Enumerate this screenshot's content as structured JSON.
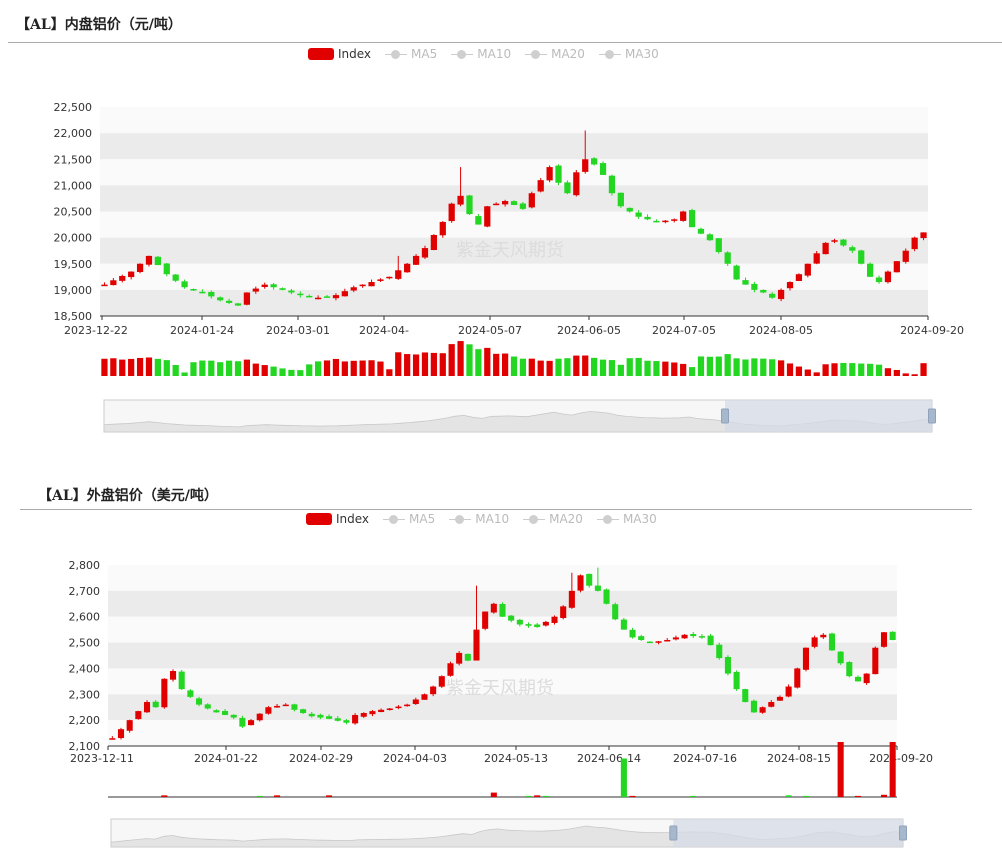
{
  "colors": {
    "up": "#e00000",
    "down": "#22d622",
    "band": "#ebebeb",
    "axis": "#333333",
    "watermark": "#dcdcdc",
    "zoom_fill": "#d6dbe6"
  },
  "charts": [
    {
      "title": "【AL】内盘铝价（元/吨）",
      "watermark": "紫金天风期货",
      "legend": {
        "active": "Index",
        "inactive": [
          "MA5",
          "MA10",
          "MA20",
          "MA30"
        ]
      },
      "ytick_labels": [
        "22,500",
        "22,000",
        "21,500",
        "21,000",
        "20,500",
        "20,000",
        "19,500",
        "19,000",
        "18,500"
      ],
      "xtick_labels": [
        "2023-12-22",
        "2024-01-24",
        "2024-03-01",
        "2024-04-",
        "2024-05-07",
        "2024-06-05",
        "2024-07-05",
        "2024-08-05",
        "2024-09-20"
      ]
    },
    {
      "title": "【AL】外盘铝价（美元/吨）",
      "watermark": "紫金天风期货",
      "legend": {
        "active": "Index",
        "inactive": [
          "MA5",
          "MA10",
          "MA20",
          "MA30"
        ]
      },
      "ytick_labels": [
        "2,800",
        "2,700",
        "2,600",
        "2,500",
        "2,400",
        "2,300",
        "2,200",
        "2,100"
      ],
      "xtick_labels": [
        "2023-12-11",
        "2024-01-22",
        "2024-02-29",
        "2024-04-03",
        "2024-05-13",
        "2024-06-14",
        "2024-07-16",
        "2024-08-15",
        "2024-09-20"
      ]
    }
  ],
  "chart_data": [
    {
      "type": "candlestick",
      "title": "【AL】内盘铝价（元/吨）",
      "ylim": [
        18500,
        22500
      ],
      "x_start": "2023-12-22",
      "x_end": "2024-09-20",
      "series_name": "Index",
      "close_path": [
        [
          0,
          19100
        ],
        [
          3,
          19350
        ],
        [
          5,
          19650
        ],
        [
          7,
          19300
        ],
        [
          9,
          19050
        ],
        [
          11,
          18950
        ],
        [
          13,
          18800
        ],
        [
          15,
          18700
        ],
        [
          16,
          18950
        ],
        [
          18,
          19100
        ],
        [
          20,
          19000
        ],
        [
          22,
          18900
        ],
        [
          24,
          18850
        ],
        [
          26,
          18900
        ],
        [
          28,
          19050
        ],
        [
          30,
          19150
        ],
        [
          32,
          19250
        ],
        [
          34,
          19500
        ],
        [
          36,
          19800
        ],
        [
          38,
          20300
        ],
        [
          39,
          20650
        ],
        [
          40,
          20800
        ],
        [
          41,
          20450
        ],
        [
          42,
          20250
        ],
        [
          43,
          20600
        ],
        [
          45,
          20700
        ],
        [
          47,
          20550
        ],
        [
          48,
          20850
        ],
        [
          49,
          21100
        ],
        [
          50,
          21350
        ],
        [
          51,
          21050
        ],
        [
          52,
          20850
        ],
        [
          53,
          21250
        ],
        [
          54,
          21500
        ],
        [
          55,
          21400
        ],
        [
          56,
          21200
        ],
        [
          57,
          20850
        ],
        [
          58,
          20600
        ],
        [
          60,
          20400
        ],
        [
          62,
          20300
        ],
        [
          64,
          20350
        ],
        [
          65,
          20500
        ],
        [
          66,
          20200
        ],
        [
          68,
          19950
        ],
        [
          70,
          19500
        ],
        [
          71,
          19200
        ],
        [
          73,
          19000
        ],
        [
          74,
          18950
        ],
        [
          75,
          18850
        ],
        [
          76,
          19000
        ],
        [
          78,
          19300
        ],
        [
          80,
          19700
        ],
        [
          81,
          19900
        ],
        [
          82,
          19950
        ],
        [
          83,
          19850
        ],
        [
          84,
          19750
        ],
        [
          85,
          19500
        ],
        [
          86,
          19250
        ],
        [
          87,
          19150
        ],
        [
          88,
          19350
        ],
        [
          89,
          19550
        ],
        [
          90,
          19750
        ],
        [
          91,
          20000
        ],
        [
          92,
          20100
        ]
      ],
      "spikes": [
        {
          "i": 40,
          "high": 21350
        },
        {
          "i": 54,
          "high": 22050
        },
        {
          "i": 33,
          "high": 19650
        }
      ],
      "volume": {
        "ylim": [
          0,
          100
        ],
        "path": [
          [
            0,
            48
          ],
          [
            6,
            52
          ],
          [
            8,
            30
          ],
          [
            9,
            10
          ],
          [
            10,
            40
          ],
          [
            16,
            44
          ],
          [
            18,
            30
          ],
          [
            22,
            15
          ],
          [
            24,
            44
          ],
          [
            31,
            42
          ],
          [
            32,
            20
          ],
          [
            33,
            60
          ],
          [
            38,
            68
          ],
          [
            40,
            100
          ],
          [
            43,
            72
          ],
          [
            45,
            58
          ],
          [
            50,
            40
          ],
          [
            53,
            60
          ],
          [
            55,
            55
          ],
          [
            57,
            45
          ],
          [
            58,
            30
          ],
          [
            59,
            48
          ],
          [
            62,
            42
          ],
          [
            64,
            38
          ],
          [
            66,
            25
          ],
          [
            67,
            55
          ],
          [
            70,
            58
          ],
          [
            72,
            48
          ],
          [
            74,
            45
          ],
          [
            76,
            40
          ],
          [
            78,
            25
          ],
          [
            80,
            10
          ],
          [
            81,
            36
          ],
          [
            84,
            38
          ],
          [
            87,
            30
          ],
          [
            90,
            8
          ],
          [
            91,
            5
          ],
          [
            92,
            35
          ]
        ]
      },
      "zoom_window": [
        0.75,
        1.0
      ]
    },
    {
      "type": "candlestick",
      "title": "【AL】外盘铝价（美元/吨）",
      "ylim": [
        2100,
        2800
      ],
      "x_start": "2023-12-11",
      "x_end": "2024-09-20",
      "series_name": "Index",
      "close_path": [
        [
          0,
          2130
        ],
        [
          2,
          2200
        ],
        [
          4,
          2270
        ],
        [
          5,
          2250
        ],
        [
          6,
          2360
        ],
        [
          7,
          2390
        ],
        [
          8,
          2320
        ],
        [
          10,
          2260
        ],
        [
          12,
          2230
        ],
        [
          14,
          2210
        ],
        [
          15,
          2175
        ],
        [
          16,
          2200
        ],
        [
          18,
          2250
        ],
        [
          20,
          2260
        ],
        [
          21,
          2240
        ],
        [
          23,
          2215
        ],
        [
          25,
          2205
        ],
        [
          27,
          2190
        ],
        [
          28,
          2220
        ],
        [
          30,
          2235
        ],
        [
          32,
          2245
        ],
        [
          34,
          2260
        ],
        [
          36,
          2300
        ],
        [
          37,
          2330
        ],
        [
          38,
          2370
        ],
        [
          39,
          2420
        ],
        [
          40,
          2460
        ],
        [
          41,
          2430
        ],
        [
          42,
          2550
        ],
        [
          43,
          2620
        ],
        [
          44,
          2650
        ],
        [
          45,
          2600
        ],
        [
          47,
          2570
        ],
        [
          49,
          2560
        ],
        [
          51,
          2600
        ],
        [
          52,
          2640
        ],
        [
          53,
          2700
        ],
        [
          54,
          2760
        ],
        [
          55,
          2720
        ],
        [
          56,
          2700
        ],
        [
          57,
          2650
        ],
        [
          58,
          2590
        ],
        [
          59,
          2550
        ],
        [
          60,
          2520
        ],
        [
          62,
          2500
        ],
        [
          64,
          2510
        ],
        [
          66,
          2530
        ],
        [
          68,
          2520
        ],
        [
          69,
          2490
        ],
        [
          70,
          2440
        ],
        [
          71,
          2380
        ],
        [
          72,
          2320
        ],
        [
          73,
          2270
        ],
        [
          74,
          2230
        ],
        [
          75,
          2250
        ],
        [
          76,
          2270
        ],
        [
          77,
          2290
        ],
        [
          78,
          2330
        ],
        [
          79,
          2400
        ],
        [
          80,
          2480
        ],
        [
          81,
          2520
        ],
        [
          82,
          2530
        ],
        [
          83,
          2470
        ],
        [
          84,
          2420
        ],
        [
          85,
          2370
        ],
        [
          86,
          2350
        ],
        [
          87,
          2380
        ],
        [
          88,
          2480
        ],
        [
          89,
          2540
        ],
        [
          90,
          2510
        ]
      ],
      "spikes": [
        {
          "i": 42,
          "high": 2720
        },
        {
          "i": 56,
          "high": 2790
        },
        {
          "i": 53,
          "high": 2770
        }
      ],
      "volume": {
        "ylim": [
          0,
          100
        ],
        "path": [
          [
            0,
            0
          ],
          [
            90,
            0
          ]
        ],
        "bars": [
          {
            "i": 6,
            "v": 3,
            "up": true
          },
          {
            "i": 17,
            "v": 2,
            "up": false
          },
          {
            "i": 19,
            "v": 3,
            "up": true
          },
          {
            "i": 25,
            "v": 3,
            "up": true
          },
          {
            "i": 44,
            "v": 8,
            "up": true
          },
          {
            "i": 48,
            "v": 2,
            "up": false
          },
          {
            "i": 49,
            "v": 3,
            "up": true
          },
          {
            "i": 50,
            "v": 2,
            "up": false
          },
          {
            "i": 59,
            "v": 70,
            "up": false
          },
          {
            "i": 60,
            "v": 2,
            "up": true
          },
          {
            "i": 67,
            "v": 2,
            "up": false
          },
          {
            "i": 78,
            "v": 3,
            "up": false
          },
          {
            "i": 80,
            "v": 2,
            "up": false
          },
          {
            "i": 84,
            "v": 100,
            "up": true
          },
          {
            "i": 86,
            "v": 2,
            "up": true
          },
          {
            "i": 89,
            "v": 4,
            "up": true
          },
          {
            "i": 90,
            "v": 100,
            "up": true
          }
        ]
      },
      "zoom_window": [
        0.71,
        1.0
      ]
    }
  ]
}
